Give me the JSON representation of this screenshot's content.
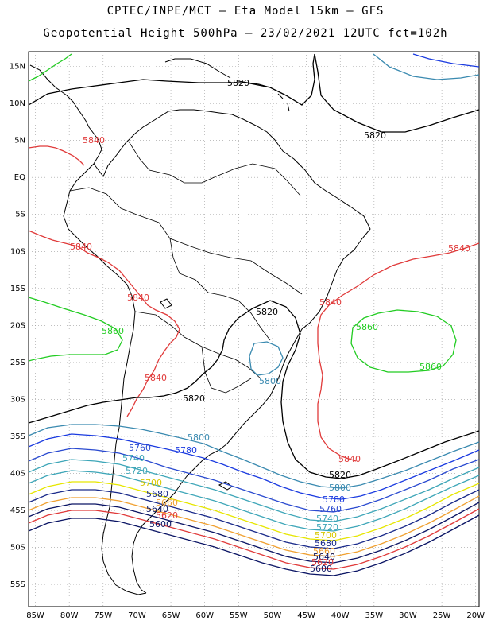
{
  "title": {
    "line1": "CPTEC/INPE/MCT –  Eta Model 15km – GFS",
    "line2": "Geopotential Height 500hPa – 23/02/2021 12UTC fct=102h"
  },
  "axes": {
    "lat_labels": [
      "15N",
      "10N",
      "5N",
      "EQ",
      "5S",
      "10S",
      "15S",
      "20S",
      "25S",
      "30S",
      "35S",
      "40S",
      "45S",
      "50S",
      "55S"
    ],
    "lon_labels": [
      "85W",
      "80W",
      "75W",
      "70W",
      "65W",
      "60W",
      "55W",
      "50W",
      "45W",
      "40W",
      "35W",
      "30W",
      "25W",
      "20W"
    ],
    "lat_range": [
      17,
      -58
    ],
    "lon_range": [
      -86,
      -19.5
    ],
    "grid": "dotted"
  },
  "colors": {
    "c5600": "#0a1464",
    "c5620": "#e03a3a",
    "c5640": "#0a1464",
    "c5660": "#f0a030",
    "c5680": "#1a2a8a",
    "c5700": "#ffff00",
    "c5720": "#3ea6b8",
    "c5740": "#3ea6b8",
    "c5760": "#2a4ad0",
    "c5780": "#1a3ae0",
    "c5800": "#3a8ab0",
    "c5820": "#000000",
    "c5840": "#e03a3a",
    "c5860": "#22cc22",
    "coast": "#000000"
  },
  "contour_labels": [
    {
      "text": "5820",
      "color": "#000000"
    },
    {
      "text": "5820",
      "color": "#000000"
    },
    {
      "text": "5840",
      "color": "#e03a3a"
    },
    {
      "text": "5840",
      "color": "#e03a3a"
    },
    {
      "text": "5840",
      "color": "#e03a3a"
    },
    {
      "text": "5840",
      "color": "#e03a3a"
    },
    {
      "text": "5840",
      "color": "#e03a3a"
    },
    {
      "text": "5860",
      "color": "#22cc22"
    },
    {
      "text": "5860",
      "color": "#22cc22"
    },
    {
      "text": "5860",
      "color": "#22cc22"
    },
    {
      "text": "5840",
      "color": "#e03a3a"
    },
    {
      "text": "5840",
      "color": "#e03a3a"
    },
    {
      "text": "5820",
      "color": "#000000"
    },
    {
      "text": "5820",
      "color": "#000000"
    },
    {
      "text": "5800",
      "color": "#3a8ab0"
    },
    {
      "text": "5800",
      "color": "#3a8ab0"
    },
    {
      "text": "5780",
      "color": "#1a3ae0"
    },
    {
      "text": "5760",
      "color": "#2a4ad0"
    },
    {
      "text": "5740",
      "color": "#3ea6b8"
    },
    {
      "text": "5720",
      "color": "#3ea6b8"
    },
    {
      "text": "5700",
      "color": "#d8c800"
    },
    {
      "text": "5680",
      "color": "#1a2a8a"
    },
    {
      "text": "5660",
      "color": "#f0a030"
    },
    {
      "text": "5640",
      "color": "#0a1464"
    },
    {
      "text": "5620",
      "color": "#e03a3a"
    },
    {
      "text": "5600",
      "color": "#0a1464"
    },
    {
      "text": "5820",
      "color": "#000000"
    },
    {
      "text": "5800",
      "color": "#3a8ab0"
    },
    {
      "text": "5780",
      "color": "#1a3ae0"
    },
    {
      "text": "5760",
      "color": "#2a4ad0"
    },
    {
      "text": "5740",
      "color": "#3ea6b8"
    },
    {
      "text": "5720",
      "color": "#3ea6b8"
    },
    {
      "text": "5700",
      "color": "#d8c800"
    },
    {
      "text": "5680",
      "color": "#1a2a8a"
    },
    {
      "text": "5660",
      "color": "#f0a030"
    },
    {
      "text": "5640",
      "color": "#0a1464"
    },
    {
      "text": "5620",
      "color": "#e03a3a"
    },
    {
      "text": "5600",
      "color": "#0a1464"
    }
  ]
}
